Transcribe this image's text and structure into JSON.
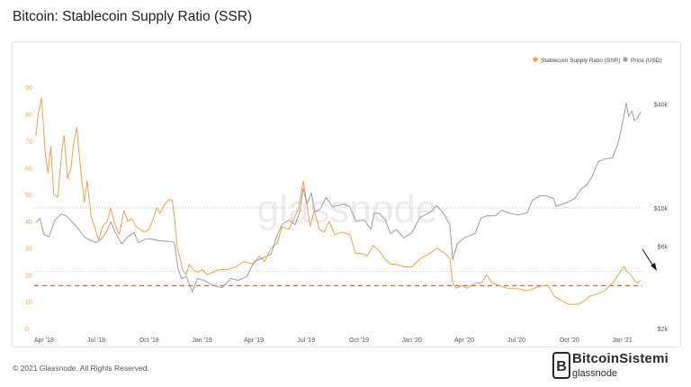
{
  "page": {
    "title": "Bitcoin: Stablecoin Supply Ratio (SSR)",
    "footer": "© 2021 Glassnode. All Rights Reserved."
  },
  "watermark": {
    "text": "glassnode"
  },
  "branding": {
    "line1": "BitcoinSistemi",
    "line2": "glassnode"
  },
  "colors": {
    "ssr": "#f0a24b",
    "price": "#9e9e9e",
    "threshold": "#e85a4f",
    "grid": "#aaaaaa"
  },
  "chart_data": {
    "type": "line",
    "title": "Bitcoin: Stablecoin Supply Ratio (SSR)",
    "legend_position": "top-right",
    "x_range": [
      "2018-03-15",
      "2021-02-05"
    ],
    "x_ticks": [
      {
        "date": "2018-04-01",
        "label": "Apr '18"
      },
      {
        "date": "2018-07-01",
        "label": "Jul '18"
      },
      {
        "date": "2018-10-01",
        "label": "Oct '18"
      },
      {
        "date": "2019-01-01",
        "label": "Jan '19"
      },
      {
        "date": "2019-04-01",
        "label": "Apr '19"
      },
      {
        "date": "2019-07-01",
        "label": "Jul '19"
      },
      {
        "date": "2019-10-01",
        "label": "Oct '19"
      },
      {
        "date": "2020-01-01",
        "label": "Jan '20"
      },
      {
        "date": "2020-04-01",
        "label": "Apr '20"
      },
      {
        "date": "2020-07-01",
        "label": "Jul '20"
      },
      {
        "date": "2020-10-01",
        "label": "Oct '20"
      },
      {
        "date": "2021-01-01",
        "label": "Jan '21"
      }
    ],
    "y_left": {
      "ticks": [
        0,
        10,
        20,
        30,
        40,
        50,
        60,
        70,
        80,
        90
      ],
      "range": [
        0,
        90
      ]
    },
    "y_right": {
      "scale": "log",
      "range": [
        2000,
        50000
      ],
      "ticks": [
        {
          "value": 2000,
          "label": "$2k"
        },
        {
          "value": 6000,
          "label": "$6k"
        },
        {
          "value": 10000,
          "label": "$10k"
        },
        {
          "value": 40000,
          "label": "$40k"
        }
      ]
    },
    "reference_lines": [
      {
        "axis": "right",
        "value": 10000,
        "style": "dotted",
        "color": "#aaaaaa"
      },
      {
        "axis": "right",
        "value": 4300,
        "style": "dotted",
        "color": "#aaaaaa"
      },
      {
        "axis": "left",
        "value": 16,
        "style": "dashed",
        "color": "#e85a4f"
      }
    ],
    "series": [
      {
        "name": "Stablecoin Supply Ratio (SSR)",
        "axis": "left",
        "color": "#f0a24b",
        "points": [
          [
            "2018-03-18",
            72
          ],
          [
            "2018-03-22",
            80
          ],
          [
            "2018-03-28",
            86
          ],
          [
            "2018-04-03",
            66
          ],
          [
            "2018-04-08",
            58
          ],
          [
            "2018-04-13",
            68
          ],
          [
            "2018-04-18",
            50
          ],
          [
            "2018-04-25",
            49
          ],
          [
            "2018-05-02",
            66
          ],
          [
            "2018-05-06",
            72
          ],
          [
            "2018-05-12",
            56
          ],
          [
            "2018-05-18",
            60
          ],
          [
            "2018-05-22",
            68
          ],
          [
            "2018-05-28",
            75
          ],
          [
            "2018-06-04",
            59
          ],
          [
            "2018-06-10",
            47
          ],
          [
            "2018-06-15",
            55
          ],
          [
            "2018-06-22",
            42
          ],
          [
            "2018-06-28",
            38
          ],
          [
            "2018-07-05",
            33
          ],
          [
            "2018-07-12",
            38
          ],
          [
            "2018-07-20",
            40
          ],
          [
            "2018-07-26",
            45
          ],
          [
            "2018-08-02",
            39
          ],
          [
            "2018-08-10",
            35
          ],
          [
            "2018-08-18",
            44
          ],
          [
            "2018-08-25",
            40
          ],
          [
            "2018-09-01",
            41
          ],
          [
            "2018-09-08",
            38
          ],
          [
            "2018-09-15",
            37
          ],
          [
            "2018-09-22",
            36
          ],
          [
            "2018-10-01",
            37
          ],
          [
            "2018-10-08",
            41
          ],
          [
            "2018-10-14",
            45
          ],
          [
            "2018-10-20",
            43
          ],
          [
            "2018-10-27",
            46
          ],
          [
            "2018-11-04",
            48
          ],
          [
            "2018-11-10",
            48
          ],
          [
            "2018-11-15",
            40
          ],
          [
            "2018-11-19",
            30
          ],
          [
            "2018-11-24",
            26
          ],
          [
            "2018-11-28",
            22
          ],
          [
            "2018-12-04",
            20
          ],
          [
            "2018-12-10",
            24
          ],
          [
            "2018-12-16",
            22
          ],
          [
            "2018-12-24",
            21
          ],
          [
            "2019-01-01",
            22
          ],
          [
            "2019-01-10",
            20
          ],
          [
            "2019-01-20",
            21
          ],
          [
            "2019-02-01",
            22
          ],
          [
            "2019-02-15",
            22
          ],
          [
            "2019-03-01",
            23
          ],
          [
            "2019-03-15",
            25
          ],
          [
            "2019-04-01",
            24
          ],
          [
            "2019-04-10",
            27
          ],
          [
            "2019-04-20",
            25
          ],
          [
            "2019-05-01",
            30
          ],
          [
            "2019-05-12",
            32
          ],
          [
            "2019-05-20",
            38
          ],
          [
            "2019-06-01",
            37
          ],
          [
            "2019-06-10",
            41
          ],
          [
            "2019-06-18",
            45
          ],
          [
            "2019-06-26",
            55
          ],
          [
            "2019-07-02",
            47
          ],
          [
            "2019-07-08",
            38
          ],
          [
            "2019-07-15",
            44
          ],
          [
            "2019-07-24",
            37
          ],
          [
            "2019-08-01",
            36
          ],
          [
            "2019-08-10",
            40
          ],
          [
            "2019-08-20",
            35
          ],
          [
            "2019-09-01",
            36
          ],
          [
            "2019-09-15",
            35
          ],
          [
            "2019-09-25",
            28
          ],
          [
            "2019-10-05",
            28
          ],
          [
            "2019-10-15",
            27
          ],
          [
            "2019-10-26",
            31
          ],
          [
            "2019-11-05",
            29
          ],
          [
            "2019-11-15",
            26
          ],
          [
            "2019-11-25",
            24
          ],
          [
            "2019-12-05",
            24
          ],
          [
            "2019-12-18",
            23
          ],
          [
            "2020-01-01",
            23
          ],
          [
            "2020-01-15",
            26
          ],
          [
            "2020-02-01",
            28
          ],
          [
            "2020-02-14",
            30
          ],
          [
            "2020-02-28",
            28
          ],
          [
            "2020-03-07",
            26
          ],
          [
            "2020-03-12",
            17
          ],
          [
            "2020-03-18",
            15
          ],
          [
            "2020-03-28",
            16
          ],
          [
            "2020-04-06",
            15
          ],
          [
            "2020-04-20",
            17
          ],
          [
            "2020-05-01",
            17
          ],
          [
            "2020-05-10",
            20
          ],
          [
            "2020-05-20",
            17
          ],
          [
            "2020-06-01",
            16
          ],
          [
            "2020-06-15",
            15
          ],
          [
            "2020-07-01",
            15
          ],
          [
            "2020-07-20",
            14
          ],
          [
            "2020-08-01",
            15
          ],
          [
            "2020-08-15",
            16
          ],
          [
            "2020-08-25",
            16
          ],
          [
            "2020-09-05",
            12
          ],
          [
            "2020-09-20",
            10
          ],
          [
            "2020-10-01",
            9
          ],
          [
            "2020-10-15",
            9
          ],
          [
            "2020-10-25",
            10
          ],
          [
            "2020-11-05",
            12
          ],
          [
            "2020-11-20",
            13
          ],
          [
            "2020-12-01",
            14
          ],
          [
            "2020-12-15",
            17
          ],
          [
            "2020-12-25",
            20
          ],
          [
            "2021-01-04",
            23
          ],
          [
            "2021-01-10",
            21
          ],
          [
            "2021-01-16",
            20
          ],
          [
            "2021-01-22",
            18
          ],
          [
            "2021-01-28",
            17
          ],
          [
            "2021-02-02",
            18
          ]
        ]
      },
      {
        "name": "Price (USD)",
        "axis": "right",
        "color": "#9e9e9e",
        "points": [
          [
            "2018-03-18",
            8200
          ],
          [
            "2018-03-25",
            8700
          ],
          [
            "2018-04-01",
            7000
          ],
          [
            "2018-04-10",
            6800
          ],
          [
            "2018-04-20",
            8500
          ],
          [
            "2018-05-01",
            9200
          ],
          [
            "2018-05-10",
            9000
          ],
          [
            "2018-05-20",
            8300
          ],
          [
            "2018-06-01",
            7500
          ],
          [
            "2018-06-10",
            6800
          ],
          [
            "2018-06-20",
            6500
          ],
          [
            "2018-07-01",
            6300
          ],
          [
            "2018-07-10",
            6600
          ],
          [
            "2018-07-20",
            7400
          ],
          [
            "2018-07-26",
            8300
          ],
          [
            "2018-08-05",
            7000
          ],
          [
            "2018-08-14",
            6200
          ],
          [
            "2018-08-25",
            6800
          ],
          [
            "2018-09-05",
            7200
          ],
          [
            "2018-09-12",
            6300
          ],
          [
            "2018-09-25",
            6600
          ],
          [
            "2018-10-05",
            6600
          ],
          [
            "2018-10-20",
            6450
          ],
          [
            "2018-11-05",
            6400
          ],
          [
            "2018-11-14",
            6300
          ],
          [
            "2018-11-20",
            4500
          ],
          [
            "2018-11-26",
            3900
          ],
          [
            "2018-12-05",
            4000
          ],
          [
            "2018-12-15",
            3250
          ],
          [
            "2018-12-24",
            3900
          ],
          [
            "2019-01-05",
            3800
          ],
          [
            "2019-01-20",
            3550
          ],
          [
            "2019-02-05",
            3450
          ],
          [
            "2019-02-20",
            3900
          ],
          [
            "2019-03-05",
            3800
          ],
          [
            "2019-03-20",
            4000
          ],
          [
            "2019-04-02",
            4900
          ],
          [
            "2019-04-15",
            5100
          ],
          [
            "2019-05-01",
            5400
          ],
          [
            "2019-05-12",
            7000
          ],
          [
            "2019-05-20",
            8000
          ],
          [
            "2019-06-01",
            8500
          ],
          [
            "2019-06-12",
            8000
          ],
          [
            "2019-06-20",
            9500
          ],
          [
            "2019-06-26",
            13000
          ],
          [
            "2019-07-02",
            10500
          ],
          [
            "2019-07-10",
            12200
          ],
          [
            "2019-07-16",
            9500
          ],
          [
            "2019-07-25",
            9800
          ],
          [
            "2019-08-05",
            11500
          ],
          [
            "2019-08-15",
            10200
          ],
          [
            "2019-08-25",
            10300
          ],
          [
            "2019-09-05",
            10500
          ],
          [
            "2019-09-15",
            10200
          ],
          [
            "2019-09-25",
            8400
          ],
          [
            "2019-10-10",
            8500
          ],
          [
            "2019-10-22",
            7500
          ],
          [
            "2019-10-27",
            9300
          ],
          [
            "2019-11-05",
            9300
          ],
          [
            "2019-11-15",
            8600
          ],
          [
            "2019-11-25",
            7100
          ],
          [
            "2019-12-05",
            7500
          ],
          [
            "2019-12-18",
            6700
          ],
          [
            "2020-01-01",
            7200
          ],
          [
            "2020-01-15",
            8800
          ],
          [
            "2020-02-01",
            9400
          ],
          [
            "2020-02-13",
            10300
          ],
          [
            "2020-02-25",
            9300
          ],
          [
            "2020-03-07",
            8000
          ],
          [
            "2020-03-12",
            5000
          ],
          [
            "2020-03-20",
            6200
          ],
          [
            "2020-04-01",
            6700
          ],
          [
            "2020-04-20",
            7100
          ],
          [
            "2020-04-30",
            8700
          ],
          [
            "2020-05-10",
            9000
          ],
          [
            "2020-05-25",
            9000
          ],
          [
            "2020-06-05",
            9700
          ],
          [
            "2020-06-20",
            9300
          ],
          [
            "2020-07-05",
            9100
          ],
          [
            "2020-07-20",
            9400
          ],
          [
            "2020-07-28",
            11000
          ],
          [
            "2020-08-10",
            11700
          ],
          [
            "2020-08-20",
            11800
          ],
          [
            "2020-09-03",
            11400
          ],
          [
            "2020-09-08",
            10200
          ],
          [
            "2020-09-25",
            10700
          ],
          [
            "2020-10-10",
            11300
          ],
          [
            "2020-10-21",
            12800
          ],
          [
            "2020-11-01",
            13700
          ],
          [
            "2020-11-10",
            15300
          ],
          [
            "2020-11-20",
            18500
          ],
          [
            "2020-12-01",
            19200
          ],
          [
            "2020-12-15",
            19500
          ],
          [
            "2020-12-25",
            24000
          ],
          [
            "2021-01-03",
            33000
          ],
          [
            "2021-01-08",
            40500
          ],
          [
            "2021-01-12",
            34000
          ],
          [
            "2021-01-18",
            36500
          ],
          [
            "2021-01-22",
            32000
          ],
          [
            "2021-01-28",
            33500
          ],
          [
            "2021-02-02",
            36000
          ]
        ]
      }
    ]
  }
}
